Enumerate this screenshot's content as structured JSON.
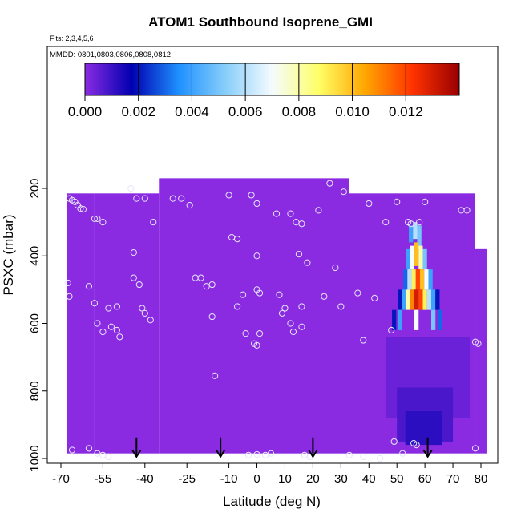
{
  "title": "ATOM1 Southbound Isoprene_GMI",
  "flights_note": "Flts: 2,3,4,5,6",
  "dates_note": "MMDD: 0801,0803,0806,0808,0812",
  "colors": {
    "background_field": "#8a2be2",
    "marker": "#e6e6fa",
    "arrow": "#000000"
  },
  "chart_data": {
    "type": "heatmap",
    "title": "ATOM1 Southbound Isoprene_GMI",
    "xlabel": "Latitude (deg N)",
    "ylabel": "PSXC (mbar)",
    "xlim": [
      -70,
      85
    ],
    "ylim": [
      1000,
      60
    ],
    "y_reversed": true,
    "x_tick_labels": [
      "-70",
      "-55",
      "-40",
      "-25",
      "-10",
      "0",
      "10",
      "20",
      "30",
      "40",
      "50",
      "60",
      "70",
      "80"
    ],
    "x_ticks": [
      -70,
      -55,
      -40,
      -25,
      -10,
      0,
      10,
      20,
      30,
      40,
      50,
      60,
      70,
      80
    ],
    "y_tick_labels": [
      "200",
      "400",
      "600",
      "800",
      "1000"
    ],
    "y_ticks": [
      200,
      400,
      600,
      800,
      1000
    ],
    "colorbar": {
      "range": [
        0,
        0.014
      ],
      "tick_labels": [
        "0.000",
        "0.002",
        "0.004",
        "0.006",
        "0.008",
        "0.010",
        "0.012"
      ],
      "ticks": [
        0,
        0.002,
        0.004,
        0.006,
        0.008,
        0.01,
        0.012
      ],
      "colors": [
        "#8a2be2",
        "#0000b0",
        "#1e90ff",
        "#87cefa",
        "#f5fbff",
        "#ffff66",
        "#ffa500",
        "#ff3300",
        "#990000"
      ]
    },
    "field_regions": [
      {
        "lat": [
          -68,
          -58
        ],
        "p": [
          215,
          985
        ],
        "value": 0.0
      },
      {
        "lat": [
          -58,
          -35
        ],
        "p": [
          215,
          985
        ],
        "value": 0.0
      },
      {
        "lat": [
          -35,
          33
        ],
        "p": [
          170,
          985
        ],
        "value": 0.0
      },
      {
        "lat": [
          33,
          78
        ],
        "p": [
          215,
          985
        ],
        "value": 0.0
      },
      {
        "lat": [
          78,
          82
        ],
        "p": [
          380,
          985
        ],
        "value": 0.0
      },
      {
        "lat": [
          46,
          76
        ],
        "p": [
          640,
          880
        ],
        "value": 0.0004
      },
      {
        "lat": [
          50,
          70
        ],
        "p": [
          790,
          950
        ],
        "value": 0.0008
      },
      {
        "lat": [
          53,
          66
        ],
        "p": [
          860,
          960
        ],
        "value": 0.0012
      }
    ],
    "plume": [
      {
        "lat": 55.0,
        "p": [
          310,
          360
        ],
        "value": 0.004
      },
      {
        "lat": 56.5,
        "p": [
          300,
          350
        ],
        "value": 0.006
      },
      {
        "lat": 58.0,
        "p": [
          310,
          380
        ],
        "value": 0.005
      },
      {
        "lat": 54.0,
        "p": [
          380,
          440
        ],
        "value": 0.004
      },
      {
        "lat": 55.5,
        "p": [
          370,
          440
        ],
        "value": 0.007
      },
      {
        "lat": 57.0,
        "p": [
          360,
          430
        ],
        "value": 0.01
      },
      {
        "lat": 58.5,
        "p": [
          370,
          440
        ],
        "value": 0.008
      },
      {
        "lat": 60.0,
        "p": [
          380,
          440
        ],
        "value": 0.005
      },
      {
        "lat": 53.0,
        "p": [
          440,
          500
        ],
        "value": 0.003
      },
      {
        "lat": 54.5,
        "p": [
          440,
          500
        ],
        "value": 0.006
      },
      {
        "lat": 56.0,
        "p": [
          440,
          500
        ],
        "value": 0.009
      },
      {
        "lat": 57.5,
        "p": [
          440,
          500
        ],
        "value": 0.012
      },
      {
        "lat": 59.0,
        "p": [
          440,
          500
        ],
        "value": 0.01
      },
      {
        "lat": 60.5,
        "p": [
          440,
          500
        ],
        "value": 0.007
      },
      {
        "lat": 62.0,
        "p": [
          440,
          500
        ],
        "value": 0.004
      },
      {
        "lat": 51.0,
        "p": [
          500,
          560
        ],
        "value": 0.002
      },
      {
        "lat": 52.5,
        "p": [
          500,
          560
        ],
        "value": 0.004
      },
      {
        "lat": 54.0,
        "p": [
          500,
          560
        ],
        "value": 0.008
      },
      {
        "lat": 55.5,
        "p": [
          500,
          560
        ],
        "value": 0.011
      },
      {
        "lat": 57.0,
        "p": [
          500,
          560
        ],
        "value": 0.013
      },
      {
        "lat": 58.5,
        "p": [
          500,
          560
        ],
        "value": 0.012
      },
      {
        "lat": 60.0,
        "p": [
          500,
          560
        ],
        "value": 0.009
      },
      {
        "lat": 61.5,
        "p": [
          500,
          560
        ],
        "value": 0.006
      },
      {
        "lat": 63.0,
        "p": [
          500,
          560
        ],
        "value": 0.004
      },
      {
        "lat": 64.5,
        "p": [
          500,
          560
        ],
        "value": 0.002
      },
      {
        "lat": 49.0,
        "p": [
          560,
          620
        ],
        "value": 0.002
      },
      {
        "lat": 51.0,
        "p": [
          560,
          620
        ],
        "value": 0.004
      },
      {
        "lat": 57.0,
        "p": [
          560,
          620
        ],
        "value": 0.007
      },
      {
        "lat": 63.0,
        "p": [
          560,
          620
        ],
        "value": 0.005
      },
      {
        "lat": 65.5,
        "p": [
          560,
          620
        ],
        "value": 0.003
      }
    ],
    "observations": [
      [
        -67,
        230
      ],
      [
        -66,
        235
      ],
      [
        -65,
        240
      ],
      [
        -64,
        250
      ],
      [
        -63,
        260
      ],
      [
        -62,
        262
      ],
      [
        -67.5,
        480
      ],
      [
        -67,
        520
      ],
      [
        -66,
        975
      ],
      [
        -58,
        290
      ],
      [
        -57,
        290
      ],
      [
        -55,
        300
      ],
      [
        -60,
        490
      ],
      [
        -58,
        540
      ],
      [
        -57,
        600
      ],
      [
        -55,
        625
      ],
      [
        -53,
        555
      ],
      [
        -52,
        610
      ],
      [
        -50,
        550
      ],
      [
        -50,
        620
      ],
      [
        -49,
        640
      ],
      [
        -60,
        970
      ],
      [
        -57,
        985
      ],
      [
        -55,
        990
      ],
      [
        -53,
        995
      ],
      [
        -45,
        200
      ],
      [
        -43,
        230
      ],
      [
        -40,
        230
      ],
      [
        -37,
        300
      ],
      [
        -44,
        390
      ],
      [
        -44,
        465
      ],
      [
        -42,
        485
      ],
      [
        -41,
        555
      ],
      [
        -40,
        570
      ],
      [
        -38,
        590
      ],
      [
        -30,
        230
      ],
      [
        -27,
        230
      ],
      [
        -24,
        250
      ],
      [
        -22,
        465
      ],
      [
        -20,
        465
      ],
      [
        -18,
        490
      ],
      [
        -16,
        485
      ],
      [
        -16,
        580
      ],
      [
        -15,
        755
      ],
      [
        -10,
        220
      ],
      [
        -9,
        345
      ],
      [
        -7,
        350
      ],
      [
        -7,
        550
      ],
      [
        -5,
        515
      ],
      [
        -4,
        630
      ],
      [
        -2,
        220
      ],
      [
        -1,
        660
      ],
      [
        -3,
        990
      ],
      [
        0,
        988
      ],
      [
        0,
        245
      ],
      [
        0,
        400
      ],
      [
        0,
        500
      ],
      [
        1,
        510
      ],
      [
        1,
        630
      ],
      [
        0,
        665
      ],
      [
        3,
        990
      ],
      [
        5,
        985
      ],
      [
        7,
        275
      ],
      [
        8,
        515
      ],
      [
        9,
        570
      ],
      [
        10,
        555
      ],
      [
        12,
        275
      ],
      [
        14,
        300
      ],
      [
        16,
        305
      ],
      [
        15,
        395
      ],
      [
        12,
        600
      ],
      [
        13,
        625
      ],
      [
        16,
        550
      ],
      [
        16,
        610
      ],
      [
        17,
        990
      ],
      [
        19,
        995
      ],
      [
        18,
        420
      ],
      [
        22,
        265
      ],
      [
        24,
        520
      ],
      [
        26,
        185
      ],
      [
        28,
        435
      ],
      [
        30,
        550
      ],
      [
        31,
        210
      ],
      [
        33,
        990
      ],
      [
        36,
        510
      ],
      [
        38,
        650
      ],
      [
        38,
        995
      ],
      [
        40,
        245
      ],
      [
        42,
        525
      ],
      [
        44,
        1000
      ],
      [
        46,
        300
      ],
      [
        48,
        620
      ],
      [
        50,
        240
      ],
      [
        54,
        300
      ],
      [
        55,
        305
      ],
      [
        58,
        300
      ],
      [
        60,
        240
      ],
      [
        49,
        950
      ],
      [
        52,
        985
      ],
      [
        56,
        955
      ],
      [
        57,
        960
      ],
      [
        73,
        265
      ],
      [
        75,
        265
      ],
      [
        78,
        655
      ],
      [
        79,
        660
      ],
      [
        78,
        970
      ]
    ],
    "arrow_latitudes": [
      -43,
      -13,
      20,
      61
    ],
    "arrow_pressure": 990
  }
}
